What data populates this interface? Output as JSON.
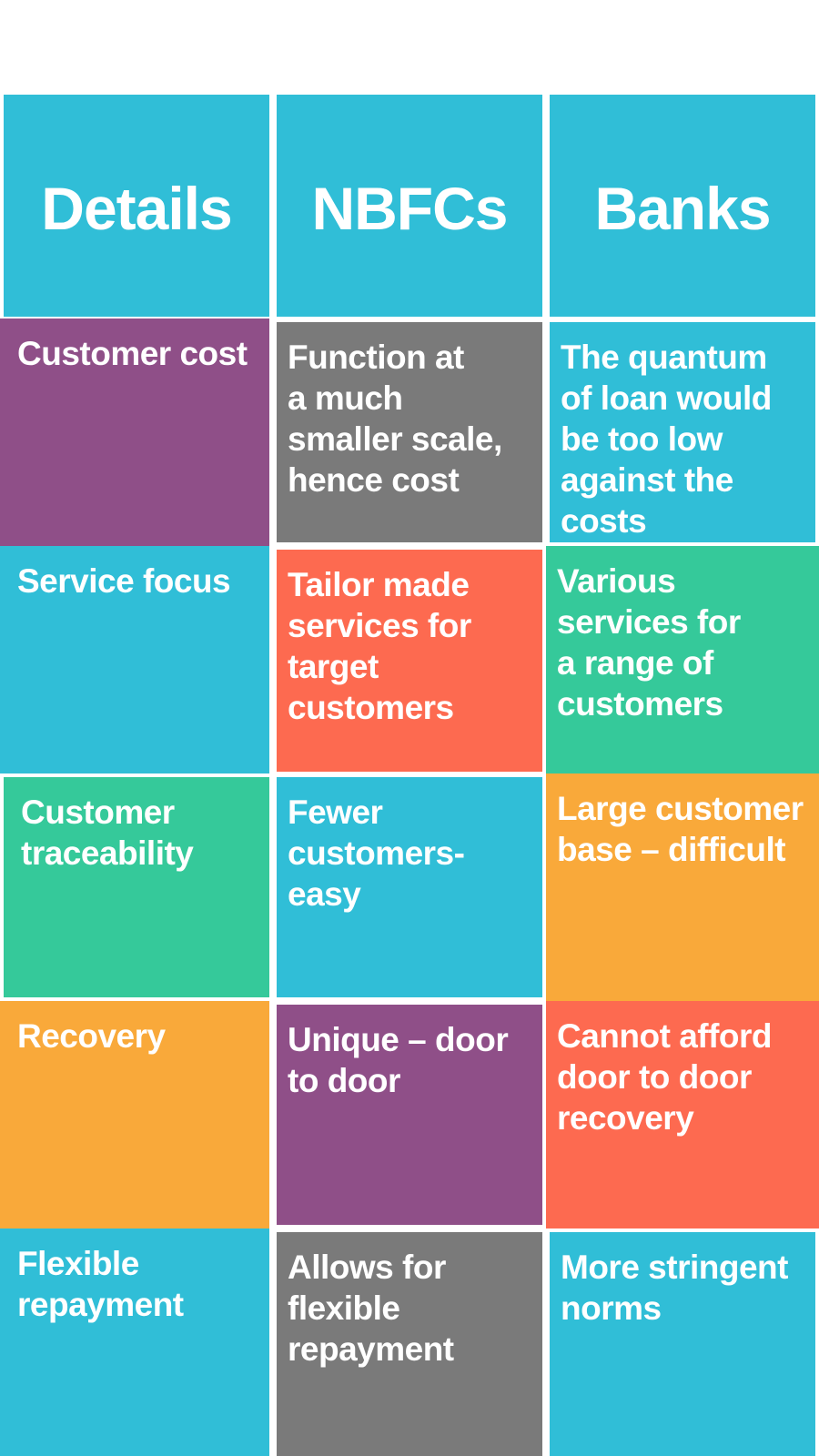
{
  "header": {
    "details": "Details",
    "nbfcs": "NBFCs",
    "banks": "Banks"
  },
  "rows": [
    {
      "detail": "Customer cost",
      "nbfc": "Function at\na much\nsmaller scale,\nhence cost",
      "bank": "The quantum\nof loan would\nbe too low\nagainst the\ncosts"
    },
    {
      "detail": "Service focus",
      "nbfc": "Tailor made\nservices for\n target\ncustomers",
      "bank": "Various\nservices for\na range of\ncustomers"
    },
    {
      "detail": "Customer\ntraceability",
      "nbfc": "Fewer\ncustomers-\neasy",
      "bank": "Large customer\nbase – difficult"
    },
    {
      "detail": "Recovery",
      "nbfc": "Unique – door\nto door",
      "bank": "Cannot afford\ndoor to door\nrecovery"
    },
    {
      "detail": "Flexible\nrepayment",
      "nbfc": "Allows for\nflexible\nrepayment",
      "bank": "More stringent\nnorms"
    }
  ],
  "colors": {
    "cyan": "#30bed7",
    "purple": "#8f4f88",
    "gray": "#7a7a7a",
    "coral": "#fd6a50",
    "green": "#35c99a",
    "orange": "#f9a93a"
  }
}
